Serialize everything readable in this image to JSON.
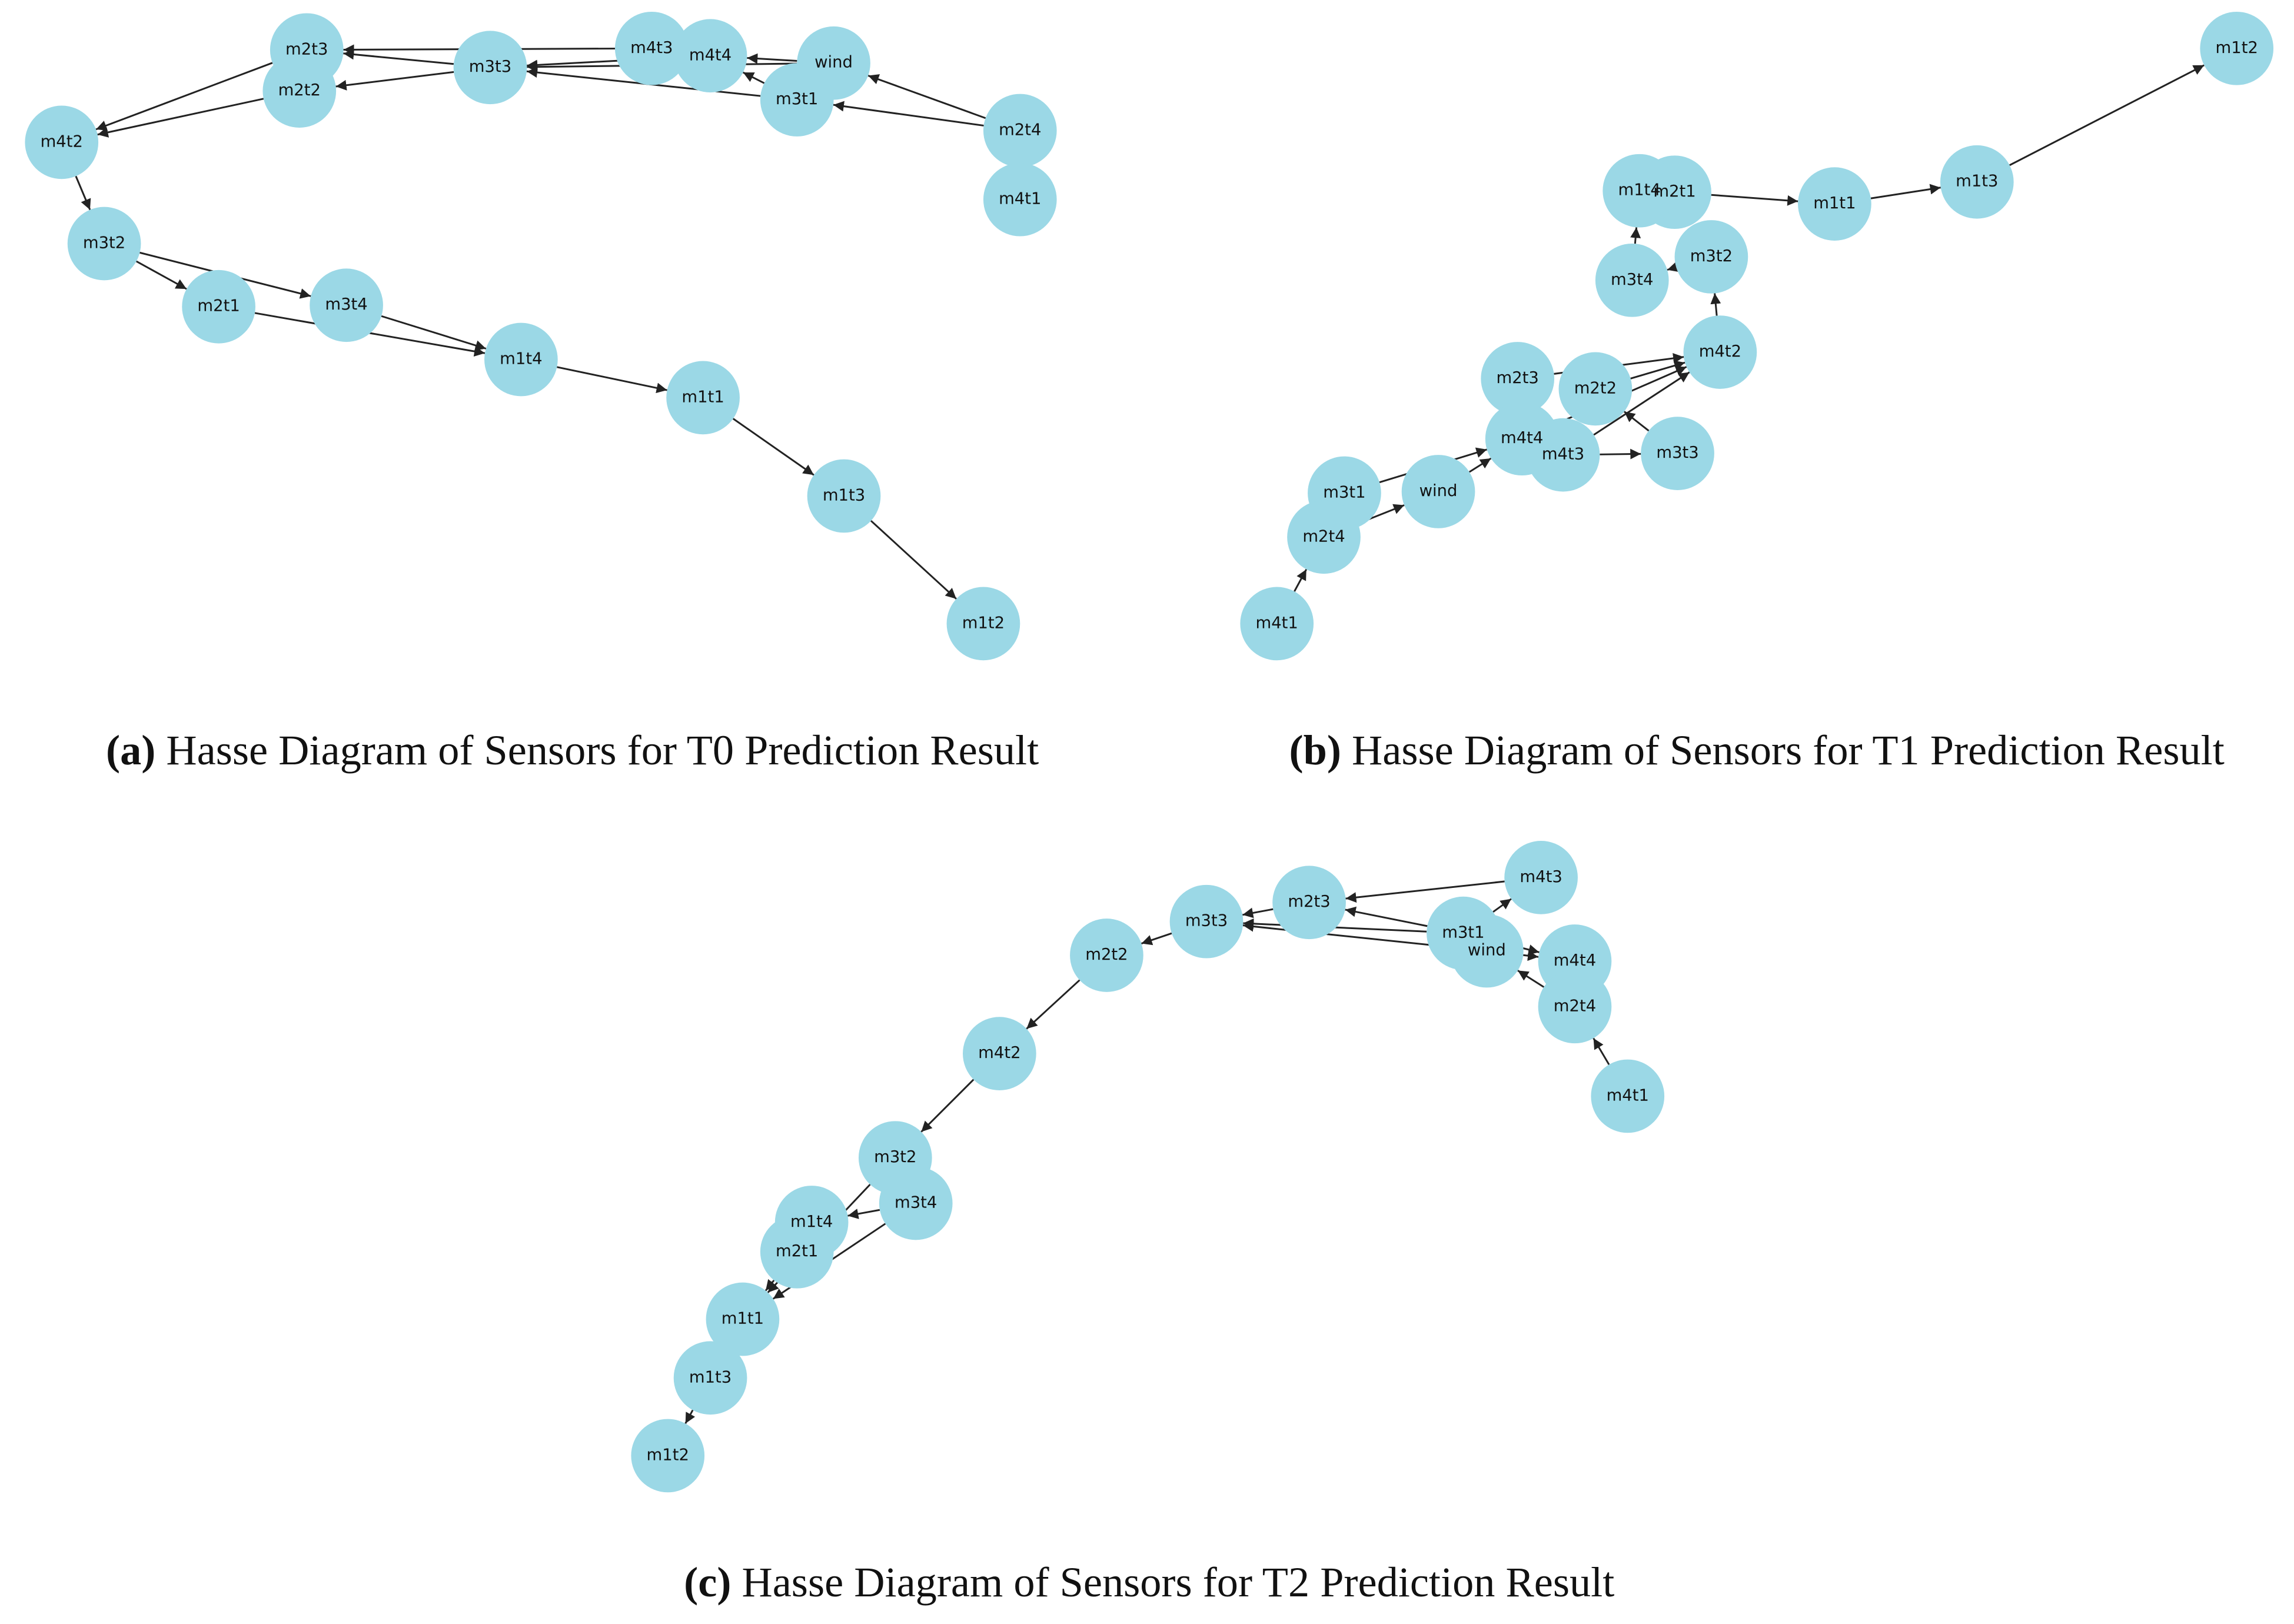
{
  "graphs": [
    {
      "caption": {
        "label": "(a)",
        "text": " Hasse Diagram of Sensors for T0 Prediction Result"
      },
      "nodes": [
        "m2t3",
        "m2t2",
        "m3t3",
        "m4t3",
        "m4t4",
        "wind",
        "m3t1",
        "m2t4",
        "m4t1",
        "m4t2",
        "m3t2",
        "m2t1",
        "m3t4",
        "m1t4",
        "m1t1",
        "m1t3",
        "m1t2"
      ]
    },
    {
      "caption": {
        "label": "(b)",
        "text": " Hasse Diagram of Sensors for T1 Prediction Result"
      },
      "nodes": [
        "m1t2",
        "m1t3",
        "m1t1",
        "m2t1",
        "m1t4",
        "m3t4",
        "m3t2",
        "m4t2",
        "m2t3",
        "m2t2",
        "m4t4",
        "m4t3",
        "m3t3",
        "wind",
        "m3t1",
        "m2t4",
        "m4t1"
      ]
    },
    {
      "caption": {
        "label": "(c)",
        "text": " Hasse Diagram of Sensors for T2 Prediction Result"
      },
      "nodes": [
        "m4t3",
        "m2t3",
        "m3t3",
        "m2t2",
        "m3t1",
        "wind",
        "m4t4",
        "m2t4",
        "m4t1",
        "m4t2",
        "m3t2",
        "m3t4",
        "m1t4",
        "m2t1",
        "m1t1",
        "m1t3",
        "m1t2"
      ]
    }
  ]
}
